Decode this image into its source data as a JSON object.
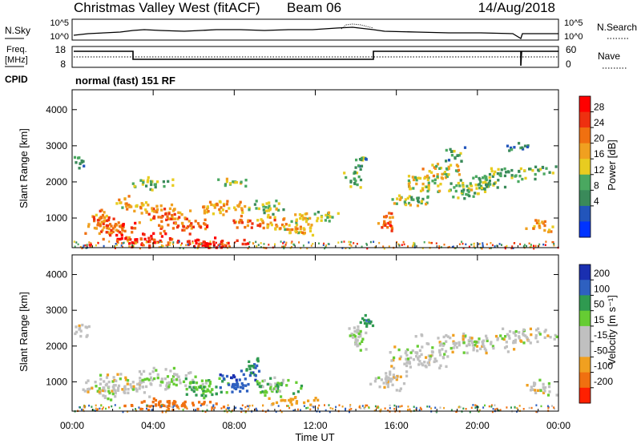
{
  "header": {
    "title": "Christmas Valley West (fitACF)",
    "beam": "Beam 06",
    "date": "14/Aug/2018"
  },
  "noise_panel": {
    "left_label": "N.Sky",
    "right_label": "N.Search",
    "left_ticks": [
      "10^5",
      "10^0"
    ],
    "right_ticks": [
      "10^5",
      "10^0"
    ]
  },
  "freq_panel": {
    "left_label_1": "Freq.",
    "left_label_2": "[MHz]",
    "right_label": "Nave",
    "left_ticks": [
      "18",
      "8"
    ],
    "right_ticks": [
      "60",
      "0"
    ],
    "cpid_label": "CPID",
    "cpid_value": "normal (fast) 151 RF"
  },
  "x_axis": {
    "label": "Time UT",
    "ticks": [
      "00:00",
      "04:00",
      "08:00",
      "12:00",
      "16:00",
      "20:00",
      "00:00"
    ]
  },
  "colors": {
    "power_scale": [
      "#0033ff",
      "#2255bb",
      "#3a8a5a",
      "#4aa860",
      "#e8cc20",
      "#f0a020",
      "#f07010",
      "#ee3010",
      "#ff0000"
    ],
    "velocity_scale": [
      "#1a2fb0",
      "#2e60c0",
      "#2f9a50",
      "#66cc33",
      "#c0c0c0",
      "#c0c0c0",
      "#f0a020",
      "#f07010",
      "#ff2000"
    ],
    "ground_gray": "#c0c0c0"
  },
  "chart_data": [
    {
      "type": "heatmap",
      "title": "Power",
      "xlabel": "Time UT",
      "ylabel": "Slant Range [km]",
      "xlim": [
        0,
        24
      ],
      "ylim": [
        180,
        4550
      ],
      "yticks": [
        "1000",
        "2000",
        "3000",
        "4000"
      ],
      "colorbar": {
        "label": "Power [dB]",
        "ticks": [
          "4",
          "8",
          "12",
          "16",
          "20",
          "24",
          "28"
        ],
        "range": [
          0,
          32
        ]
      },
      "blobs": [
        {
          "t": 0.3,
          "r": 2550,
          "dt": 0.4,
          "dr": 250,
          "v": 10
        },
        {
          "t": 1.3,
          "r": 950,
          "dt": 0.9,
          "dr": 450,
          "v": 22
        },
        {
          "t": 2.2,
          "r": 700,
          "dt": 1.1,
          "dr": 350,
          "v": 25
        },
        {
          "t": 2.8,
          "r": 1400,
          "dt": 1.0,
          "dr": 250,
          "v": 18
        },
        {
          "t": 3.5,
          "r": 450,
          "dt": 1.4,
          "dr": 250,
          "v": 29
        },
        {
          "t": 3.8,
          "r": 2000,
          "dt": 1.2,
          "dr": 200,
          "v": 13
        },
        {
          "t": 4.5,
          "r": 1150,
          "dt": 1.4,
          "dr": 300,
          "v": 22
        },
        {
          "t": 5.5,
          "r": 850,
          "dt": 1.4,
          "dr": 300,
          "v": 24
        },
        {
          "t": 6.5,
          "r": 350,
          "dt": 2.8,
          "dr": 150,
          "v": 29
        },
        {
          "t": 7.4,
          "r": 1300,
          "dt": 1.6,
          "dr": 250,
          "v": 20
        },
        {
          "t": 7.8,
          "r": 2050,
          "dt": 0.9,
          "dr": 150,
          "v": 14
        },
        {
          "t": 9.2,
          "r": 900,
          "dt": 1.6,
          "dr": 200,
          "v": 22
        },
        {
          "t": 9.6,
          "r": 1300,
          "dt": 1.0,
          "dr": 250,
          "v": 14
        },
        {
          "t": 10.6,
          "r": 700,
          "dt": 1.6,
          "dr": 200,
          "v": 18
        },
        {
          "t": 11.5,
          "r": 1000,
          "dt": 1.3,
          "dr": 200,
          "v": 16
        },
        {
          "t": 12.6,
          "r": 1100,
          "dt": 0.8,
          "dr": 150,
          "v": 14
        },
        {
          "t": 13.8,
          "r": 2100,
          "dt": 0.5,
          "dr": 350,
          "v": 12
        },
        {
          "t": 14.2,
          "r": 2600,
          "dt": 0.4,
          "dr": 300,
          "v": 10
        },
        {
          "t": 15.5,
          "r": 950,
          "dt": 0.6,
          "dr": 350,
          "v": 24
        },
        {
          "t": 16.5,
          "r": 1550,
          "dt": 1.4,
          "dr": 200,
          "v": 14
        },
        {
          "t": 17.3,
          "r": 2000,
          "dt": 1.3,
          "dr": 300,
          "v": 16
        },
        {
          "t": 18.3,
          "r": 2300,
          "dt": 1.2,
          "dr": 250,
          "v": 17
        },
        {
          "t": 19.3,
          "r": 1800,
          "dt": 1.3,
          "dr": 250,
          "v": 13
        },
        {
          "t": 20.5,
          "r": 2050,
          "dt": 1.6,
          "dr": 250,
          "v": 12
        },
        {
          "t": 22.0,
          "r": 2300,
          "dt": 2.0,
          "dr": 200,
          "v": 12
        },
        {
          "t": 18.8,
          "r": 2800,
          "dt": 0.6,
          "dr": 250,
          "v": 10
        },
        {
          "t": 23.2,
          "r": 800,
          "dt": 0.9,
          "dr": 200,
          "v": 20
        },
        {
          "t": 22.0,
          "r": 3000,
          "dt": 0.7,
          "dr": 150,
          "v": 10
        }
      ]
    },
    {
      "type": "heatmap",
      "title": "Velocity",
      "xlabel": "Time UT",
      "ylabel": "Slant Range [km]",
      "xlim": [
        0,
        24
      ],
      "ylim": [
        180,
        4550
      ],
      "yticks": [
        "1000",
        "2000",
        "3000",
        "4000"
      ],
      "colorbar": {
        "label": "Velocity [m s⁻¹]",
        "ticks": [
          "200",
          "100",
          "50",
          "15",
          "-15",
          "-50",
          "-100",
          "-200"
        ],
        "range": [
          -250,
          250
        ]
      },
      "blobs": [
        {
          "t": 0.4,
          "r": 2500,
          "dt": 0.5,
          "dr": 250,
          "v": 0
        },
        {
          "t": 2.0,
          "r": 900,
          "dt": 1.8,
          "dr": 450,
          "v": 0
        },
        {
          "t": 4.5,
          "r": 1100,
          "dt": 1.8,
          "dr": 350,
          "v": 5
        },
        {
          "t": 6.5,
          "r": 850,
          "dt": 1.4,
          "dr": 350,
          "v": 30
        },
        {
          "t": 5.0,
          "r": 400,
          "dt": 2.5,
          "dr": 200,
          "v": -120
        },
        {
          "t": 8.2,
          "r": 1050,
          "dt": 1.1,
          "dr": 350,
          "v": 140
        },
        {
          "t": 8.9,
          "r": 1500,
          "dt": 0.5,
          "dr": 300,
          "v": 70
        },
        {
          "t": 10.0,
          "r": 900,
          "dt": 1.6,
          "dr": 300,
          "v": 25
        },
        {
          "t": 11.0,
          "r": 500,
          "dt": 1.5,
          "dr": 150,
          "v": -40
        },
        {
          "t": 14.0,
          "r": 2300,
          "dt": 0.6,
          "dr": 500,
          "v": 5
        },
        {
          "t": 15.6,
          "r": 1000,
          "dt": 1.0,
          "dr": 350,
          "v": 0
        },
        {
          "t": 17.0,
          "r": 1700,
          "dt": 1.8,
          "dr": 350,
          "v": 0
        },
        {
          "t": 19.5,
          "r": 2100,
          "dt": 2.8,
          "dr": 300,
          "v": 0
        },
        {
          "t": 22.5,
          "r": 2300,
          "dt": 1.8,
          "dr": 250,
          "v": 0
        },
        {
          "t": 23.1,
          "r": 850,
          "dt": 0.9,
          "dr": 250,
          "v": 0
        },
        {
          "t": 14.5,
          "r": 2700,
          "dt": 0.5,
          "dr": 250,
          "v": 60
        }
      ]
    }
  ]
}
